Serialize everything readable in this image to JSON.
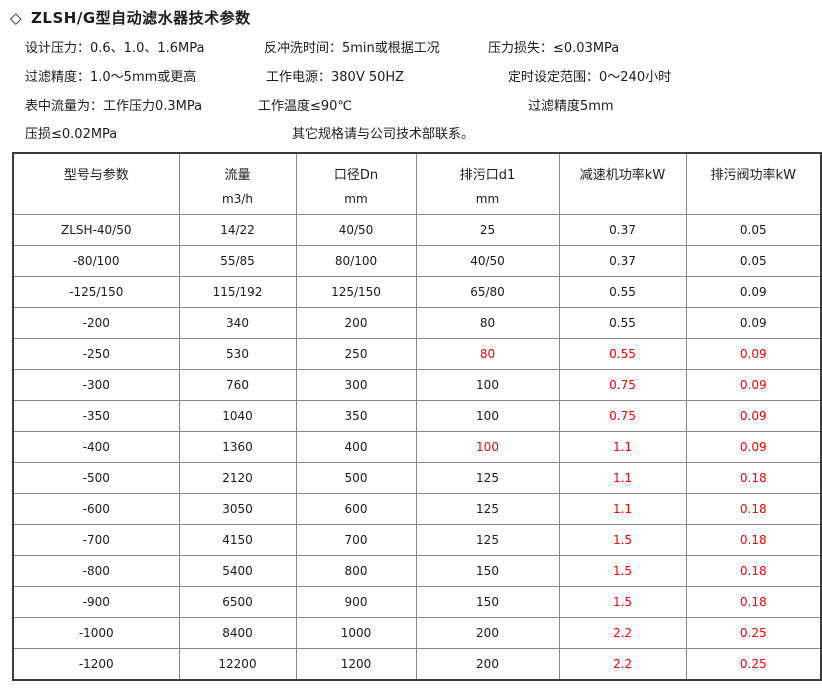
{
  "title": {
    "bullet": "◇",
    "text": "ZLSH/G型自动滤水器技术参数"
  },
  "specs": {
    "line1": [
      "设计压力：0.6、1.0、1.6MPa",
      "反冲洗时间：5min或根据工况",
      "压力损失：≤0.03MPa"
    ],
    "line2": [
      "过滤精度：1.0～5mm或更高",
      "工作电源：380V 50HZ",
      "定时设定范围：0～240小时"
    ],
    "line3": [
      "表中流量为：工作压力0.3MPa",
      "工作温度≤90℃",
      "过滤精度5mm"
    ],
    "line4": [
      "压损≤0.02MPa",
      "其它规格请与公司技术部联系。"
    ]
  },
  "table": {
    "columns": [
      {
        "label": "型号与参数",
        "unit": ""
      },
      {
        "label": "流量",
        "unit": "m3/h"
      },
      {
        "label": "口径Dn",
        "unit": "mm"
      },
      {
        "label": "排污口d1",
        "unit": "mm"
      },
      {
        "label": "减速机功率kW",
        "unit": ""
      },
      {
        "label": "排污阀功率kW",
        "unit": ""
      }
    ],
    "rows": [
      {
        "cells": [
          "ZLSH-40/50",
          "14/22",
          "40/50",
          "25",
          "0.37",
          "0.05"
        ],
        "red": []
      },
      {
        "cells": [
          "-80/100",
          "55/85",
          "80/100",
          "40/50",
          "0.37",
          "0.05"
        ],
        "red": []
      },
      {
        "cells": [
          "-125/150",
          "115/192",
          "125/150",
          "65/80",
          "0.55",
          "0.09"
        ],
        "red": []
      },
      {
        "cells": [
          "-200",
          "340",
          "200",
          "80",
          "0.55",
          "0.09"
        ],
        "red": []
      },
      {
        "cells": [
          "-250",
          "530",
          "250",
          "80",
          "0.55",
          "0.09"
        ],
        "red": [
          3,
          4,
          5
        ]
      },
      {
        "cells": [
          "-300",
          "760",
          "300",
          "100",
          "0.75",
          "0.09"
        ],
        "red": [
          4,
          5
        ]
      },
      {
        "cells": [
          "-350",
          "1040",
          "350",
          "100",
          "0.75",
          "0.09"
        ],
        "red": [
          4,
          5
        ]
      },
      {
        "cells": [
          "-400",
          "1360",
          "400",
          "100",
          "1.1",
          "0.09"
        ],
        "red": [
          3,
          4,
          5
        ]
      },
      {
        "cells": [
          "-500",
          "2120",
          "500",
          "125",
          "1.1",
          "0.18"
        ],
        "red": [
          4,
          5
        ]
      },
      {
        "cells": [
          "-600",
          "3050",
          "600",
          "125",
          "1.1",
          "0.18"
        ],
        "red": [
          4,
          5
        ]
      },
      {
        "cells": [
          "-700",
          "4150",
          "700",
          "125",
          "1.5",
          "0.18"
        ],
        "red": [
          4,
          5
        ]
      },
      {
        "cells": [
          "-800",
          "5400",
          "800",
          "150",
          "1.5",
          "0.18"
        ],
        "red": [
          4,
          5
        ]
      },
      {
        "cells": [
          "-900",
          "6500",
          "900",
          "150",
          "1.5",
          "0.18"
        ],
        "red": [
          4,
          5
        ]
      },
      {
        "cells": [
          "-1000",
          "8400",
          "1000",
          "200",
          "2.2",
          "0.25"
        ],
        "red": [
          4,
          5
        ]
      },
      {
        "cells": [
          "-1200",
          "12200",
          "1200",
          "200",
          "2.2",
          "0.25"
        ],
        "red": [
          4,
          5
        ]
      }
    ]
  },
  "colors": {
    "highlight_red": "#ff0000",
    "text": "#1c1c1c",
    "table_outer_border": "#3c3c3c",
    "table_inner_border": "#8a8a8a",
    "background": "#ffffff"
  }
}
